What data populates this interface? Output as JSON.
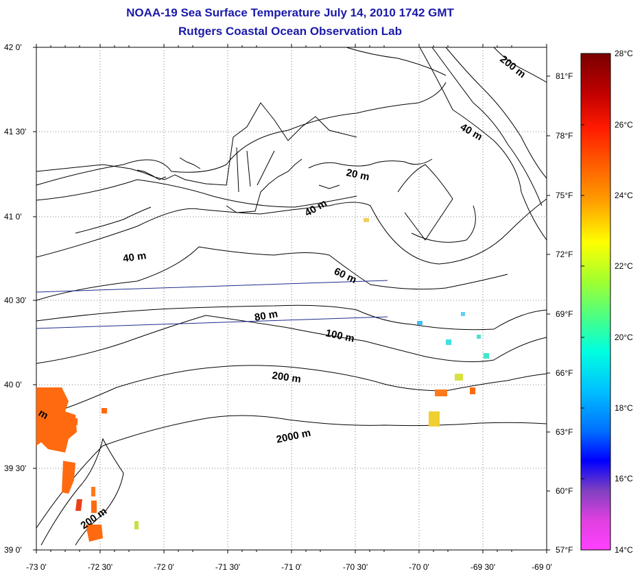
{
  "title": "NOAA-19 Sea Surface Temperature July 14, 2010 1742 GMT",
  "subtitle": "Rutgers Coastal Ocean Observation Lab",
  "lat_labels": [
    "42 0'",
    "41 30'",
    "41 0'",
    "40 30'",
    "40 0'",
    "39 30'",
    "39 0'"
  ],
  "lon_labels": [
    "-73 0'",
    "-72 30'",
    "-72 0'",
    "-71 30'",
    "-71 0'",
    "-70 30'",
    "-70 0'",
    "-69 30'",
    "-69 0'"
  ],
  "contour_labels": [
    "200 m",
    "40 m",
    "20 m",
    "40 m",
    "40 m",
    "60 m",
    "80 m",
    "100 m",
    "200 m",
    "2000 m",
    "200 m",
    "m"
  ],
  "colorbar": {
    "celsius": [
      "28°C",
      "26°C",
      "24°C",
      "22°C",
      "20°C",
      "18°C",
      "16°C",
      "14°C"
    ],
    "fahrenheit": [
      "81°F",
      "78°F",
      "75°F",
      "72°F",
      "69°F",
      "66°F",
      "63°F",
      "60°F",
      "57°F"
    ]
  },
  "colors": {
    "title": "#1a1aa8",
    "ship_track": "#1a2a8a",
    "warm_patch": "#ff6a10",
    "land_line": "#000000"
  }
}
